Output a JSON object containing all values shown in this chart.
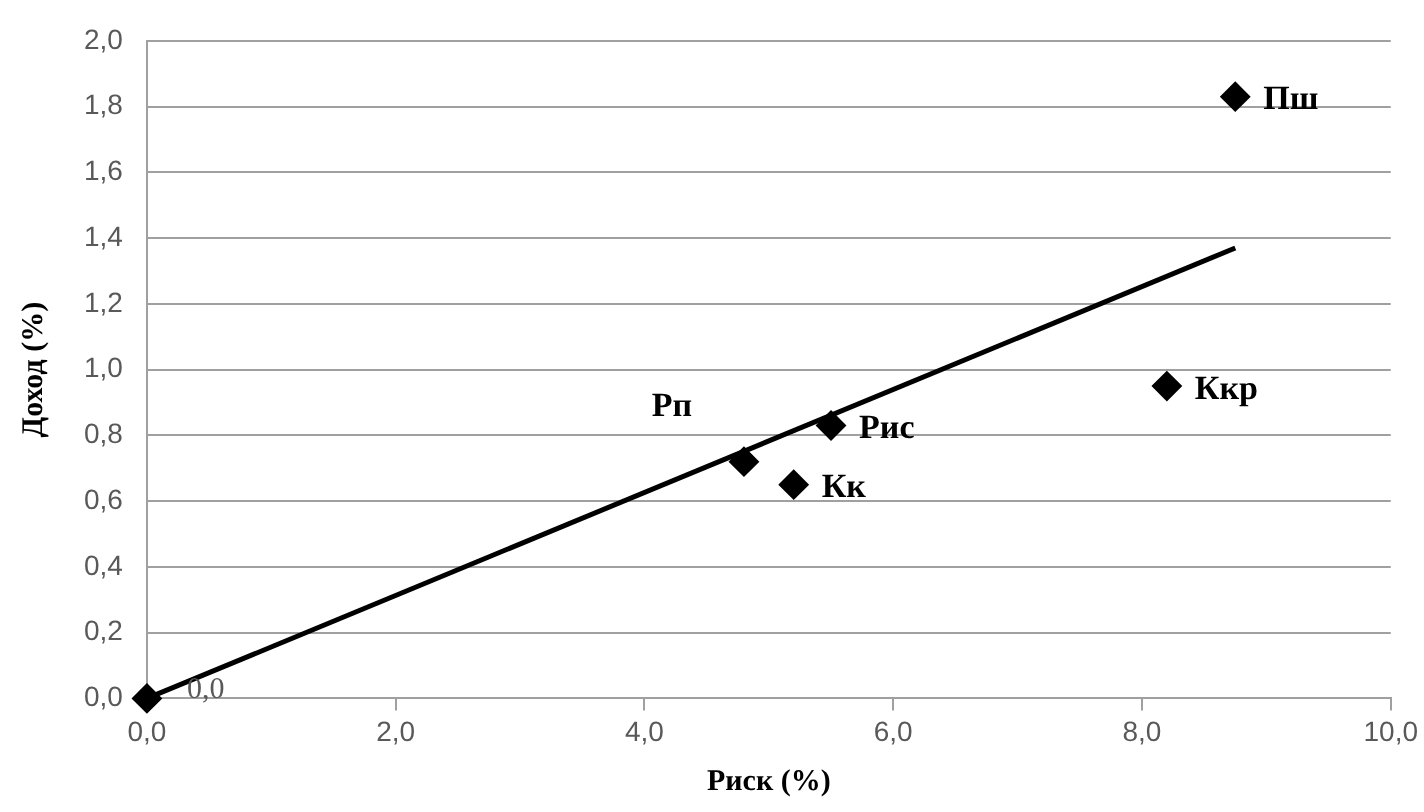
{
  "chart_data": {
    "type": "scatter",
    "xlabel": "Риск (%)",
    "ylabel": "Доход (%)",
    "series": [
      {
        "type": "scatter",
        "color": "#000000",
        "marker": "diamond",
        "x": [
          0,
          4.8,
          5.5,
          5.2,
          8.2,
          8.75
        ],
        "values": [
          0,
          0.72,
          0.83,
          0.65,
          0.95,
          1.83
        ]
      },
      {
        "type": "line",
        "color": "#000000",
        "marker": "none",
        "x": [
          0,
          8.75
        ],
        "values": [
          0,
          1.37
        ]
      }
    ],
    "annotations": [
      {
        "text": "0,0",
        "x": 0,
        "y": 0
      },
      {
        "text": "Рп",
        "x": 4.8,
        "y": 0.72
      },
      {
        "text": "Рис",
        "x": 5.5,
        "y": 0.83
      },
      {
        "text": "Кк",
        "x": 5.2,
        "y": 0.65
      },
      {
        "text": "Ккр",
        "x": 8.2,
        "y": 0.95
      },
      {
        "text": "Пш",
        "x": 8.75,
        "y": 1.83
      }
    ],
    "xlim": [
      0,
      10
    ],
    "xticks": [
      {
        "value": 0,
        "label": "0,0"
      },
      {
        "value": 2,
        "label": "2,0"
      },
      {
        "value": 4,
        "label": "4,0"
      },
      {
        "value": 6,
        "label": "6,0"
      },
      {
        "value": 8,
        "label": "8,0"
      },
      {
        "value": 10,
        "label": "10,0"
      }
    ],
    "ylim": [
      0,
      2
    ],
    "yticks": [
      {
        "value": 0,
        "label": "0,0"
      },
      {
        "value": 0.2,
        "label": "0,2"
      },
      {
        "value": 0.4,
        "label": "0,4"
      },
      {
        "value": 0.6,
        "label": "0,6"
      },
      {
        "value": 0.8,
        "label": "0,8"
      },
      {
        "value": 1,
        "label": "1,0"
      },
      {
        "value": 1.2,
        "label": "1,2"
      },
      {
        "value": 1.4,
        "label": "1,4"
      },
      {
        "value": 1.6,
        "label": "1,6"
      },
      {
        "value": 1.8,
        "label": "1,8"
      },
      {
        "value": 2,
        "label": "2,0"
      }
    ],
    "grid": "y",
    "legend": false,
    "line_style": "solid"
  }
}
